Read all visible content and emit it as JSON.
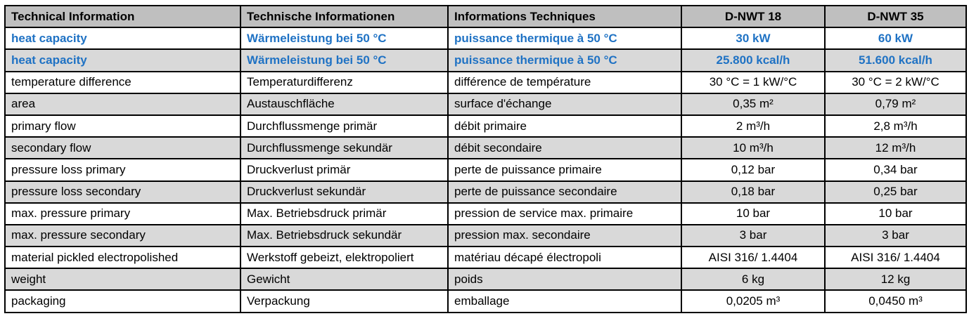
{
  "header": [
    "Technical Information",
    "Technische Informationen",
    "Informations Techniques",
    "D-NWT 18",
    "D-NWT 35"
  ],
  "colors": {
    "header_bg": "#bfbfbf",
    "alt_row_bg": "#d9d9d9",
    "highlight_text": "#1f72c4"
  },
  "rows": [
    [
      "heat capacity",
      "Wärmeleistung bei 50 °C",
      "puissance thermique à 50 °C",
      "30 kW",
      "60 kW"
    ],
    [
      "heat capacity",
      "Wärmeleistung bei 50 °C",
      "puissance thermique à 50 °C",
      "25.800 kcal/h",
      "51.600 kcal/h"
    ],
    [
      "temperature difference",
      "Temperaturdifferenz",
      "différence de température",
      "30 °C = 1 kW/°C",
      "30 °C = 2 kW/°C"
    ],
    [
      "area",
      "Austauschfläche",
      "surface d'échange",
      "0,35 m²",
      "0,79 m²"
    ],
    [
      "primary flow",
      "Durchflussmenge primär",
      "débit primaire",
      "2 m³/h",
      "2,8 m³/h"
    ],
    [
      "secondary flow",
      "Durchflussmenge sekundär",
      "débit secondaire",
      "10 m³/h",
      "12 m³/h"
    ],
    [
      "pressure loss primary",
      "Druckverlust primär",
      "perte de puissance primaire",
      "0,12 bar",
      "0,34 bar"
    ],
    [
      "pressure loss secondary",
      "Druckverlust sekundär",
      "perte de puissance secondaire",
      "0,18 bar",
      "0,25 bar"
    ],
    [
      "max. pressure primary",
      "Max. Betriebsdruck primär",
      "pression de service max. primaire",
      "10 bar",
      "10 bar"
    ],
    [
      "max. pressure secondary",
      "Max. Betriebsdruck sekundär",
      "pression max. secondaire",
      "3 bar",
      "3 bar"
    ],
    [
      "material pickled electropolished",
      "Werkstoff gebeizt, elektropoliert",
      "matériau décapé électropoli",
      "AISI 316/ 1.4404",
      "AISI 316/ 1.4404"
    ],
    [
      "weight",
      "Gewicht",
      "poids",
      "6 kg",
      "12 kg"
    ],
    [
      "packaging",
      "Verpackung",
      "emballage",
      "0,0205 m³",
      "0,0450 m³"
    ]
  ]
}
